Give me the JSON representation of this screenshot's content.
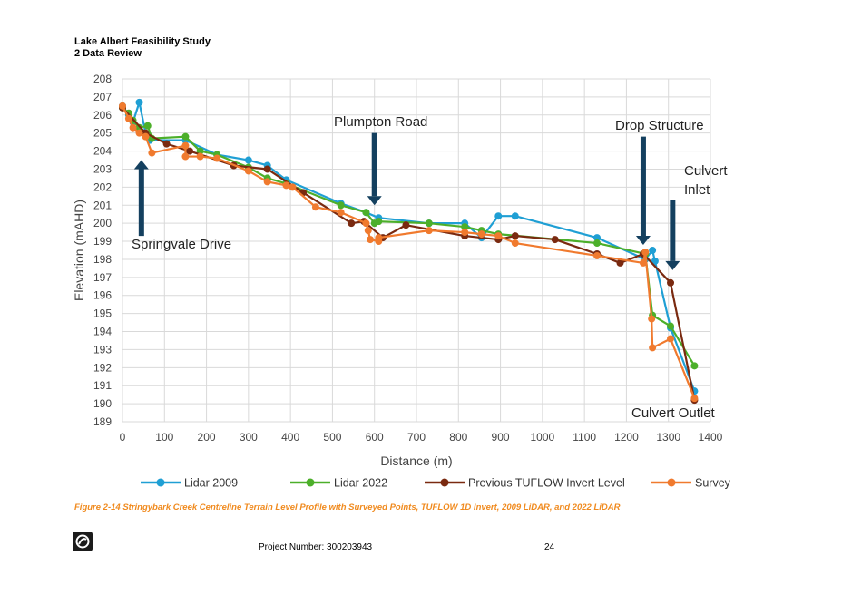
{
  "header": {
    "title": "Lake Albert Feasibility Study",
    "section": "2 Data Review"
  },
  "caption": "Figure 2-14 Stringybark Creek Centreline Terrain Level Profile with Surveyed Points, TUFLOW 1D Invert, 2009 LiDAR, and 2022 LiDAR",
  "footer": {
    "project": "Project Number: 300203943",
    "page": "24"
  },
  "colors": {
    "lidar2009": "#1f9fd4",
    "lidar2022": "#4caf2a",
    "tuflow": "#7a2a10",
    "survey": "#f07a2e",
    "arrow": "#14405f",
    "grid": "#d9d9d9"
  },
  "chart_data": {
    "type": "line",
    "title": "",
    "xlabel": "Distance (m)",
    "ylabel": "Elevation (mAHD)",
    "xlim": [
      0,
      1400
    ],
    "ylim": [
      189,
      208
    ],
    "x_ticks": [
      0,
      100,
      200,
      300,
      400,
      500,
      600,
      700,
      800,
      900,
      1000,
      1100,
      1200,
      1300,
      1400
    ],
    "y_ticks": [
      189,
      190,
      191,
      192,
      193,
      194,
      195,
      196,
      197,
      198,
      199,
      200,
      201,
      202,
      203,
      204,
      205,
      206,
      207,
      208
    ],
    "grid": true,
    "legend_position": "bottom",
    "series": [
      {
        "name": "Lidar 2009",
        "color": "#1f9fd4",
        "points": [
          [
            0,
            206.5
          ],
          [
            15,
            206.0
          ],
          [
            25,
            205.6
          ],
          [
            40,
            206.7
          ],
          [
            55,
            205.0
          ],
          [
            65,
            204.6
          ],
          [
            150,
            204.6
          ],
          [
            225,
            203.8
          ],
          [
            300,
            203.5
          ],
          [
            345,
            203.2
          ],
          [
            390,
            202.4
          ],
          [
            520,
            201.1
          ],
          [
            580,
            200.6
          ],
          [
            610,
            200.3
          ],
          [
            730,
            200.0
          ],
          [
            815,
            200.0
          ],
          [
            855,
            199.2
          ],
          [
            895,
            200.4
          ],
          [
            935,
            200.4
          ],
          [
            1130,
            199.2
          ],
          [
            1245,
            198.0
          ],
          [
            1262,
            198.5
          ],
          [
            1268,
            197.9
          ],
          [
            1305,
            194.2
          ],
          [
            1362,
            190.7
          ]
        ]
      },
      {
        "name": "Lidar 2022",
        "color": "#4caf2a",
        "points": [
          [
            0,
            206.4
          ],
          [
            15,
            206.1
          ],
          [
            25,
            205.7
          ],
          [
            40,
            205.3
          ],
          [
            60,
            205.4
          ],
          [
            70,
            204.7
          ],
          [
            150,
            204.8
          ],
          [
            185,
            204.0
          ],
          [
            225,
            203.8
          ],
          [
            300,
            203.1
          ],
          [
            345,
            202.5
          ],
          [
            390,
            202.2
          ],
          [
            520,
            201.0
          ],
          [
            580,
            200.6
          ],
          [
            600,
            200.0
          ],
          [
            610,
            200.1
          ],
          [
            730,
            200.0
          ],
          [
            815,
            199.8
          ],
          [
            855,
            199.6
          ],
          [
            895,
            199.4
          ],
          [
            1130,
            198.9
          ],
          [
            1245,
            198.3
          ],
          [
            1262,
            194.9
          ],
          [
            1305,
            194.3
          ],
          [
            1362,
            192.1
          ]
        ]
      },
      {
        "name": "Previous TUFLOW Invert Level",
        "color": "#7a2a10",
        "points": [
          [
            0,
            206.4
          ],
          [
            55,
            205.0
          ],
          [
            105,
            204.4
          ],
          [
            160,
            204.0
          ],
          [
            265,
            203.2
          ],
          [
            345,
            203.0
          ],
          [
            430,
            201.7
          ],
          [
            545,
            200.0
          ],
          [
            575,
            200.1
          ],
          [
            620,
            199.2
          ],
          [
            675,
            199.9
          ],
          [
            815,
            199.3
          ],
          [
            895,
            199.1
          ],
          [
            935,
            199.3
          ],
          [
            1030,
            199.1
          ],
          [
            1130,
            198.3
          ],
          [
            1185,
            197.8
          ],
          [
            1240,
            198.3
          ],
          [
            1305,
            196.7
          ],
          [
            1362,
            190.2
          ]
        ]
      },
      {
        "name": "Survey",
        "color": "#f07a2e",
        "points": [
          [
            0,
            206.5
          ],
          [
            15,
            205.8
          ],
          [
            25,
            205.3
          ],
          [
            40,
            205.0
          ],
          [
            55,
            204.8
          ],
          [
            70,
            203.9
          ],
          [
            150,
            204.3
          ],
          [
            150,
            203.7
          ],
          [
            185,
            203.7
          ],
          [
            225,
            203.6
          ],
          [
            300,
            202.9
          ],
          [
            345,
            202.3
          ],
          [
            390,
            202.1
          ],
          [
            405,
            202.0
          ],
          [
            460,
            200.9
          ],
          [
            520,
            200.6
          ],
          [
            580,
            200.0
          ],
          [
            585,
            199.6
          ],
          [
            590,
            199.1
          ],
          [
            610,
            199.0
          ],
          [
            610,
            199.2
          ],
          [
            730,
            199.6
          ],
          [
            815,
            199.5
          ],
          [
            855,
            199.4
          ],
          [
            895,
            199.3
          ],
          [
            935,
            198.9
          ],
          [
            1130,
            198.2
          ],
          [
            1240,
            197.8
          ],
          [
            1245,
            198.4
          ],
          [
            1260,
            194.7
          ],
          [
            1262,
            193.1
          ],
          [
            1305,
            193.6
          ],
          [
            1362,
            190.3
          ]
        ]
      }
    ],
    "annotations": [
      {
        "label": "Springvale Drive",
        "x": 45,
        "from_y": 199.3,
        "to_y": 203.5,
        "direction": "up"
      },
      {
        "label": "Plumpton Road",
        "x": 600,
        "from_y": 205.0,
        "to_y": 201.0,
        "direction": "down"
      },
      {
        "label": "Drop Structure",
        "x": 1240,
        "from_y": 204.8,
        "to_y": 198.8,
        "direction": "down"
      },
      {
        "label": "Culvert Inlet",
        "x": 1310,
        "from_y": 201.3,
        "to_y": 197.4,
        "direction": "down"
      },
      {
        "label": "Culvert Outlet",
        "x": 1300,
        "from_y": null,
        "to_y": null,
        "direction": "none"
      }
    ]
  }
}
